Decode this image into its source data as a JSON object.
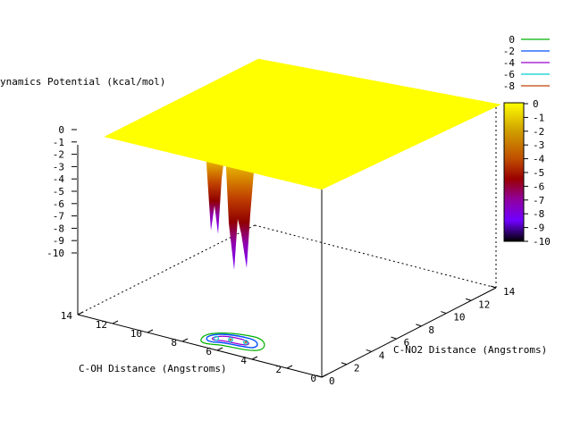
{
  "chart_data": {
    "type": "surface3d",
    "zlabel": "ynamics Potential (kcal/mol)",
    "xlabel": "C-OH Distance (Angstroms)",
    "ylabel": "C-NO2 Distance (Angstroms)",
    "xlim": [
      0,
      14
    ],
    "ylim": [
      0,
      14
    ],
    "zlim": [
      -10,
      0
    ],
    "x_ticks": [
      "0",
      "2",
      "4",
      "6",
      "8",
      "10",
      "12",
      "14"
    ],
    "y_ticks": [
      "0",
      "2",
      "4",
      "6",
      "8",
      "10",
      "12",
      "14"
    ],
    "z_ticks": [
      "0",
      "-1",
      "-2",
      "-3",
      "-4",
      "-5",
      "-6",
      "-7",
      "-8",
      "-9",
      "-10"
    ],
    "surface_plateau_z": 0,
    "wells": [
      {
        "x": 5.5,
        "y": 2.5,
        "min_z": -9.6
      },
      {
        "x": 4.5,
        "y": 2.2,
        "min_z": -9.0
      },
      {
        "x": 5.0,
        "y": 3.2,
        "min_z": -7.5
      }
    ],
    "contour_legend": [
      {
        "label": "0",
        "color": "#00b000"
      },
      {
        "label": "-2",
        "color": "#0050ff"
      },
      {
        "label": "-4",
        "color": "#9a00d0"
      },
      {
        "label": "-6",
        "color": "#00d0d0"
      },
      {
        "label": "-8",
        "color": "#c04000"
      }
    ],
    "colorbar": {
      "ticks": [
        "0",
        "-1",
        "-2",
        "-3",
        "-4",
        "-5",
        "-6",
        "-7",
        "-8",
        "-9",
        "-10"
      ],
      "range": [
        -10,
        0
      ],
      "colors": [
        "#ffff00",
        "#d0a000",
        "#c05000",
        "#9a0000",
        "#9000a0",
        "#7000ff",
        "#000000"
      ]
    }
  }
}
